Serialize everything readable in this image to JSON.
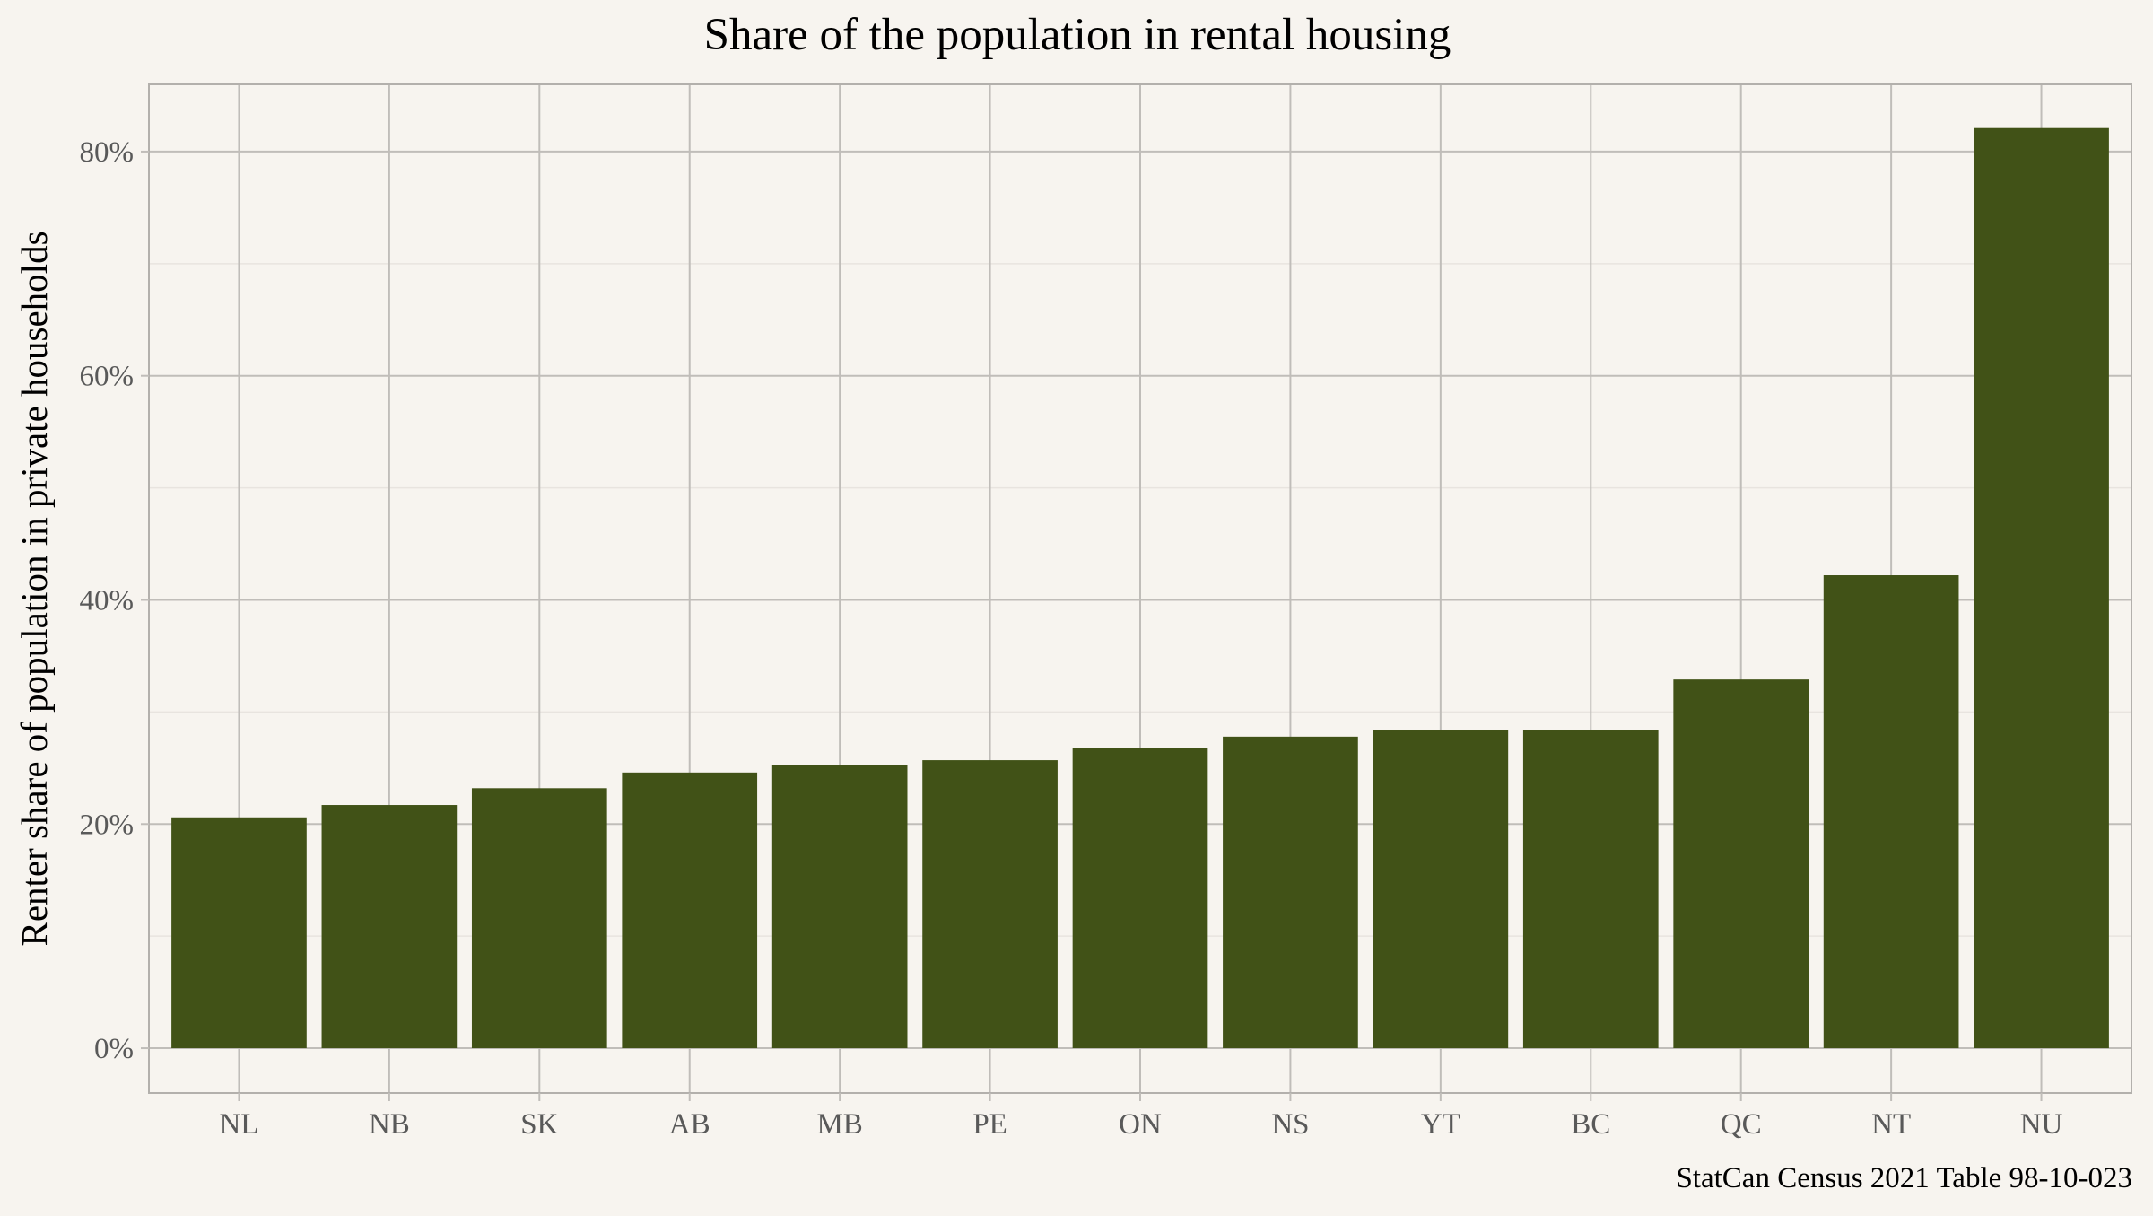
{
  "chart_data": {
    "type": "bar",
    "title": "Share of the population in rental housing",
    "xlabel": "",
    "ylabel": "Renter share of population in private households",
    "caption": "StatCan Census 2021 Table 98-10-023",
    "categories": [
      "NL",
      "NB",
      "SK",
      "AB",
      "MB",
      "PE",
      "ON",
      "NS",
      "YT",
      "BC",
      "QC",
      "NT",
      "NU"
    ],
    "values": [
      0.206,
      0.217,
      0.232,
      0.246,
      0.253,
      0.257,
      0.268,
      0.278,
      0.284,
      0.284,
      0.329,
      0.422,
      0.821
    ],
    "ylim": [
      -0.04,
      0.86
    ],
    "y_ticks": [
      0,
      0.2,
      0.4,
      0.6,
      0.8
    ],
    "y_tick_labels": [
      "0%",
      "20%",
      "40%",
      "60%",
      "80%"
    ],
    "y_minor_ticks": [
      0.1,
      0.3,
      0.5,
      0.7
    ],
    "grid": true,
    "legend": "none",
    "colors": {
      "bar": "#415217",
      "background": "#f7f4ef",
      "grid_major": "#c0bdb9",
      "grid_minor": "#e8e4df",
      "panel_border": "#b3b0ac",
      "tick_label": "#595959",
      "text": "#000000"
    }
  }
}
